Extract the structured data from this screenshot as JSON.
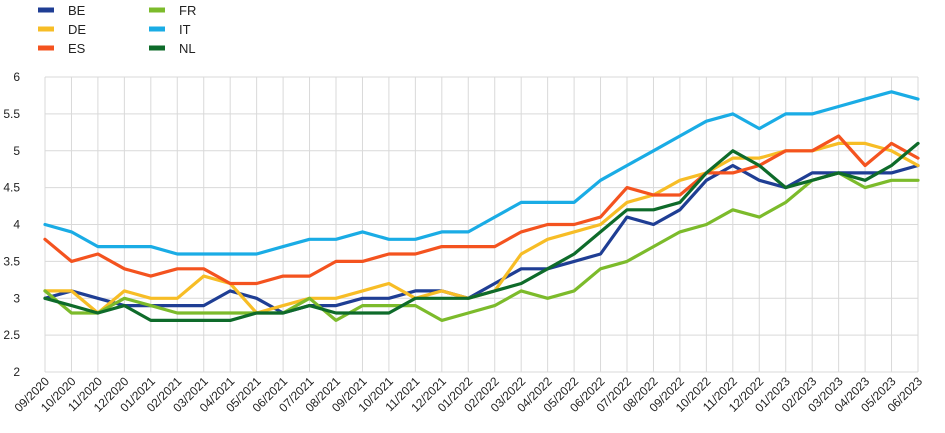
{
  "chart_data": {
    "type": "line",
    "title": "",
    "xlabel": "",
    "ylabel": "",
    "ylim": [
      2,
      6
    ],
    "yticks": [
      "2",
      "2.5",
      "3",
      "3.5",
      "4",
      "4.5",
      "5",
      "5.5",
      "6"
    ],
    "grid": true,
    "legend_position": "top-left",
    "categories": [
      "09/2020",
      "10/2020",
      "11/2020",
      "12/2020",
      "01/2021",
      "02/2021",
      "03/2021",
      "04/2021",
      "05/2021",
      "06/2021",
      "07/2021",
      "08/2021",
      "09/2021",
      "10/2021",
      "11/2021",
      "12/2021",
      "01/2022",
      "02/2022",
      "03/2022",
      "04/2022",
      "05/2022",
      "06/2022",
      "07/2022",
      "08/2022",
      "09/2022",
      "10/2022",
      "11/2022",
      "12/2022",
      "01/2023",
      "02/2023",
      "03/2023",
      "04/2023",
      "05/2023",
      "06/2023"
    ],
    "series": [
      {
        "name": "BE",
        "color": "#1f3e94",
        "values": [
          3.0,
          3.1,
          3.0,
          2.9,
          2.9,
          2.9,
          2.9,
          3.1,
          3.0,
          2.8,
          2.9,
          2.9,
          3.0,
          3.0,
          3.1,
          3.1,
          3.0,
          3.2,
          3.4,
          3.4,
          3.5,
          3.6,
          4.1,
          4.0,
          4.2,
          4.6,
          4.8,
          4.6,
          4.5,
          4.7,
          4.7,
          4.7,
          4.7,
          4.8
        ]
      },
      {
        "name": "DE",
        "color": "#f7bd26",
        "values": [
          3.1,
          3.1,
          2.8,
          3.1,
          3.0,
          3.0,
          3.3,
          3.2,
          2.8,
          2.9,
          3.0,
          3.0,
          3.1,
          3.2,
          3.0,
          3.1,
          3.0,
          3.1,
          3.6,
          3.8,
          3.9,
          4.0,
          4.3,
          4.4,
          4.6,
          4.7,
          4.9,
          4.9,
          5.0,
          5.0,
          5.1,
          5.1,
          5.0,
          4.8
        ]
      },
      {
        "name": "ES",
        "color": "#f4531f",
        "values": [
          3.8,
          3.5,
          3.6,
          3.4,
          3.3,
          3.4,
          3.4,
          3.2,
          3.2,
          3.3,
          3.3,
          3.5,
          3.5,
          3.6,
          3.6,
          3.7,
          3.7,
          3.7,
          3.9,
          4.0,
          4.0,
          4.1,
          4.5,
          4.4,
          4.4,
          4.7,
          4.7,
          4.8,
          5.0,
          5.0,
          5.2,
          4.8,
          5.1,
          4.9
        ]
      },
      {
        "name": "FR",
        "color": "#7cbb2b",
        "values": [
          3.1,
          2.8,
          2.8,
          3.0,
          2.9,
          2.8,
          2.8,
          2.8,
          2.8,
          2.8,
          3.0,
          2.7,
          2.9,
          2.9,
          2.9,
          2.7,
          2.8,
          2.9,
          3.1,
          3.0,
          3.1,
          3.4,
          3.5,
          3.7,
          3.9,
          4.0,
          4.2,
          4.1,
          4.3,
          4.6,
          4.7,
          4.5,
          4.6,
          4.6
        ]
      },
      {
        "name": "IT",
        "color": "#1aace5",
        "values": [
          4.0,
          3.9,
          3.7,
          3.7,
          3.7,
          3.6,
          3.6,
          3.6,
          3.6,
          3.7,
          3.8,
          3.8,
          3.9,
          3.8,
          3.8,
          3.9,
          3.9,
          4.1,
          4.3,
          4.3,
          4.3,
          4.6,
          4.8,
          5.0,
          5.2,
          5.4,
          5.5,
          5.3,
          5.5,
          5.5,
          5.6,
          5.7,
          5.8,
          5.7
        ]
      },
      {
        "name": "NL",
        "color": "#0e6b2a",
        "values": [
          3.0,
          2.9,
          2.8,
          2.9,
          2.7,
          2.7,
          2.7,
          2.7,
          2.8,
          2.8,
          2.9,
          2.8,
          2.8,
          2.8,
          3.0,
          3.0,
          3.0,
          3.1,
          3.2,
          3.4,
          3.6,
          3.9,
          4.2,
          4.2,
          4.3,
          4.7,
          5.0,
          4.8,
          4.5,
          4.6,
          4.7,
          4.6,
          4.8,
          5.1
        ]
      }
    ]
  }
}
